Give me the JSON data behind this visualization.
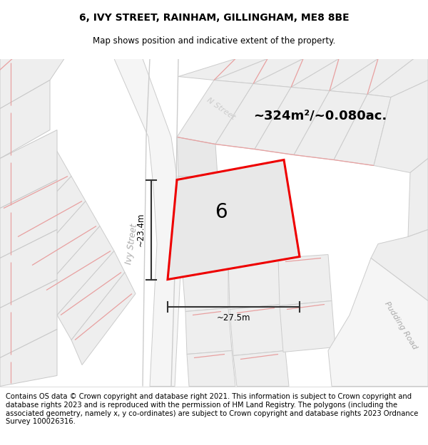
{
  "title": "6, IVY STREET, RAINHAM, GILLINGHAM, ME8 8BE",
  "subtitle": "Map shows position and indicative extent of the property.",
  "area_text": "~324m²/~0.080ac.",
  "width_label": "~27.5m",
  "height_label": "~23.4m",
  "street_label_ivy": "Ivy Street",
  "street_label_pudding": "Pudding Road",
  "street_label_top": "N Street",
  "number_label": "6",
  "footer": "Contains OS data © Crown copyright and database right 2021. This information is subject to Crown copyright and database rights 2023 and is reproduced with the permission of HM Land Registry. The polygons (including the associated geometry, namely x, y co-ordinates) are subject to Crown copyright and database rights 2023 Ordnance Survey 100026316.",
  "title_fontsize": 10,
  "subtitle_fontsize": 8.5,
  "footer_fontsize": 7.2,
  "red_line": "#ee0000",
  "pink_line": "#e8a0a0",
  "gray_line": "#bbbbbb",
  "block_fill": "#ececec",
  "road_fill": "#e0e0e0",
  "white": "#ffffff"
}
